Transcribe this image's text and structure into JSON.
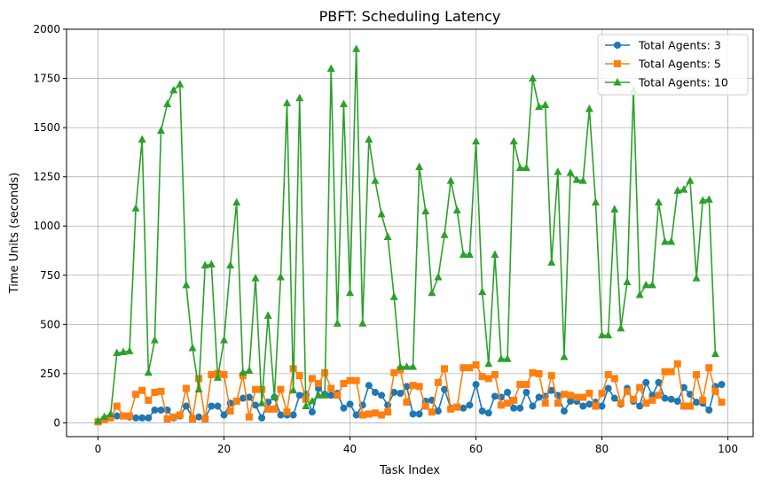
{
  "chart_data": {
    "type": "line",
    "title": "PBFT: Scheduling Latency",
    "xlabel": "Task Index",
    "ylabel": "Time Units (seconds)",
    "xlim": [
      -5,
      104
    ],
    "ylim": [
      -70,
      2000
    ],
    "xticks": [
      0,
      20,
      40,
      60,
      80,
      100
    ],
    "yticks": [
      0,
      250,
      500,
      750,
      1000,
      1250,
      1500,
      1750,
      2000
    ],
    "grid": true,
    "legend_position": "top-right",
    "series": [
      {
        "name": "Total Agents: 3",
        "color": "#1f77b4",
        "marker": "circle",
        "values": [
          5,
          20,
          25,
          35,
          35,
          30,
          25,
          25,
          25,
          65,
          65,
          65,
          25,
          35,
          85,
          25,
          30,
          25,
          85,
          85,
          40,
          100,
          110,
          125,
          130,
          90,
          25,
          105,
          130,
          40,
          40,
          40,
          140,
          145,
          55,
          175,
          145,
          140,
          150,
          75,
          95,
          40,
          90,
          190,
          155,
          140,
          90,
          155,
          150,
          185,
          45,
          45,
          110,
          115,
          60,
          170,
          75,
          80,
          75,
          90,
          195,
          60,
          50,
          135,
          130,
          155,
          75,
          75,
          155,
          85,
          130,
          135,
          165,
          140,
          60,
          110,
          110,
          85,
          95,
          105,
          85,
          175,
          125,
          95,
          175,
          110,
          85,
          205,
          140,
          205,
          125,
          120,
          110,
          180,
          145,
          105,
          100,
          65,
          185,
          195
        ]
      },
      {
        "name": "Total Agents: 5",
        "color": "#ff7f0e",
        "marker": "square",
        "values": [
          5,
          15,
          25,
          85,
          35,
          35,
          145,
          165,
          115,
          155,
          160,
          20,
          30,
          40,
          175,
          20,
          225,
          20,
          245,
          250,
          245,
          60,
          110,
          240,
          30,
          170,
          170,
          70,
          70,
          170,
          55,
          275,
          240,
          120,
          225,
          200,
          255,
          175,
          140,
          200,
          215,
          215,
          40,
          45,
          50,
          40,
          55,
          255,
          270,
          105,
          190,
          185,
          85,
          55,
          205,
          275,
          70,
          80,
          280,
          280,
          295,
          235,
          225,
          245,
          90,
          100,
          115,
          195,
          195,
          255,
          250,
          100,
          240,
          100,
          145,
          140,
          130,
          130,
          150,
          85,
          150,
          245,
          225,
          100,
          160,
          120,
          180,
          100,
          115,
          140,
          260,
          260,
          300,
          85,
          85,
          245,
          115,
          280,
          160,
          105
        ]
      },
      {
        "name": "Total Agents: 10",
        "color": "#2ca02c",
        "marker": "triangle",
        "values": [
          10,
          30,
          45,
          355,
          360,
          365,
          1090,
          1440,
          255,
          420,
          1485,
          1620,
          1690,
          1720,
          700,
          380,
          170,
          800,
          805,
          230,
          420,
          800,
          1120,
          255,
          265,
          735,
          100,
          545,
          130,
          740,
          1625,
          165,
          1650,
          85,
          110,
          140,
          140,
          1800,
          505,
          1620,
          660,
          1900,
          505,
          1440,
          1230,
          1060,
          945,
          640,
          285,
          285,
          285,
          1300,
          1075,
          660,
          740,
          955,
          1230,
          1080,
          855,
          855,
          1430,
          665,
          300,
          855,
          325,
          325,
          1430,
          1295,
          1295,
          1750,
          1605,
          1615,
          815,
          1275,
          335,
          1270,
          1235,
          1230,
          1595,
          1120,
          445,
          445,
          1085,
          480,
          715,
          1690,
          650,
          700,
          700,
          1120,
          920,
          920,
          1180,
          1185,
          1230,
          735,
          1130,
          1135,
          350
        ]
      }
    ]
  }
}
